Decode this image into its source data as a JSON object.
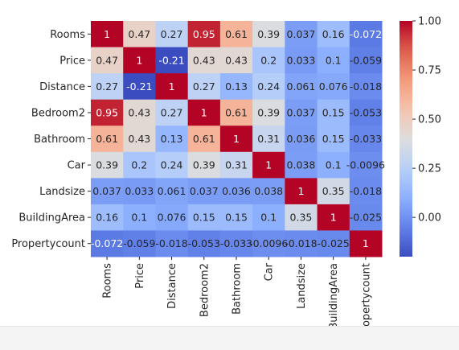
{
  "chart_data": {
    "type": "heatmap",
    "title": "",
    "xlabel": "",
    "ylabel": "",
    "colormap": "coolwarm",
    "vmin": -0.2,
    "vmax": 1.0,
    "rows": [
      "Rooms",
      "Price",
      "Distance",
      "Bedroom2",
      "Bathroom",
      "Car",
      "Landsize",
      "BuildingArea",
      "Propertycount"
    ],
    "columns": [
      "Rooms",
      "Price",
      "Distance",
      "Bedroom2",
      "Bathroom",
      "Car",
      "Landsize",
      "BuildingArea",
      "Propertycount"
    ],
    "values": [
      [
        1,
        0.47,
        0.27,
        0.95,
        0.61,
        0.39,
        0.037,
        0.16,
        -0.072
      ],
      [
        0.47,
        1,
        -0.21,
        0.43,
        0.43,
        0.2,
        0.033,
        0.1,
        -0.059
      ],
      [
        0.27,
        -0.21,
        1,
        0.27,
        0.13,
        0.24,
        0.061,
        0.076,
        -0.018
      ],
      [
        0.95,
        0.43,
        0.27,
        1,
        0.61,
        0.39,
        0.037,
        0.15,
        -0.053
      ],
      [
        0.61,
        0.43,
        0.13,
        0.61,
        1,
        0.31,
        0.036,
        0.15,
        -0.033
      ],
      [
        0.39,
        0.2,
        0.24,
        0.39,
        0.31,
        1,
        0.038,
        0.1,
        -0.0096
      ],
      [
        0.037,
        0.033,
        0.061,
        0.037,
        0.036,
        0.038,
        1,
        0.35,
        -0.018
      ],
      [
        0.16,
        0.1,
        0.076,
        0.15,
        0.15,
        0.1,
        0.35,
        1,
        -0.025
      ],
      [
        -0.072,
        -0.059,
        -0.018,
        -0.053,
        -0.033,
        -0.0096,
        -0.018,
        -0.025,
        1
      ]
    ],
    "annotations": [
      [
        "1",
        "0.47",
        "0.27",
        "0.95",
        "0.61",
        "0.39",
        "0.037",
        "0.16",
        "-0.072"
      ],
      [
        "0.47",
        "1",
        "-0.21",
        "0.43",
        "0.43",
        "0.2",
        "0.033",
        "0.1",
        "-0.059"
      ],
      [
        "0.27",
        "-0.21",
        "1",
        "0.27",
        "0.13",
        "0.24",
        "0.061",
        "0.076",
        "-0.018"
      ],
      [
        "0.95",
        "0.43",
        "0.27",
        "1",
        "0.61",
        "0.39",
        "0.037",
        "0.15",
        "-0.053"
      ],
      [
        "0.61",
        "0.43",
        "0.13",
        "0.61",
        "1",
        "0.31",
        "0.036",
        "0.15",
        "-0.033"
      ],
      [
        "0.39",
        "0.2",
        "0.24",
        "0.39",
        "0.31",
        "1",
        "0.038",
        "0.1",
        "-0.0096"
      ],
      [
        "0.037",
        "0.033",
        "0.061",
        "0.037",
        "0.036",
        "0.038",
        "1",
        "0.35",
        "-0.018"
      ],
      [
        "0.16",
        "0.1",
        "0.076",
        "0.15",
        "0.15",
        "0.1",
        "0.35",
        "1",
        "-0.025"
      ],
      [
        "-0.072",
        "-0.059",
        "-0.018",
        "-0.053",
        "-0.033",
        "-0.0096",
        "-0.018",
        "-0.025",
        "1"
      ]
    ],
    "colorbar": {
      "ticks": [
        1.0,
        0.75,
        0.5,
        0.25,
        0.0
      ],
      "tick_labels": [
        "1.00",
        "0.75",
        "0.50",
        "0.25",
        "0.00"
      ]
    },
    "grid": false,
    "legend": "none"
  }
}
